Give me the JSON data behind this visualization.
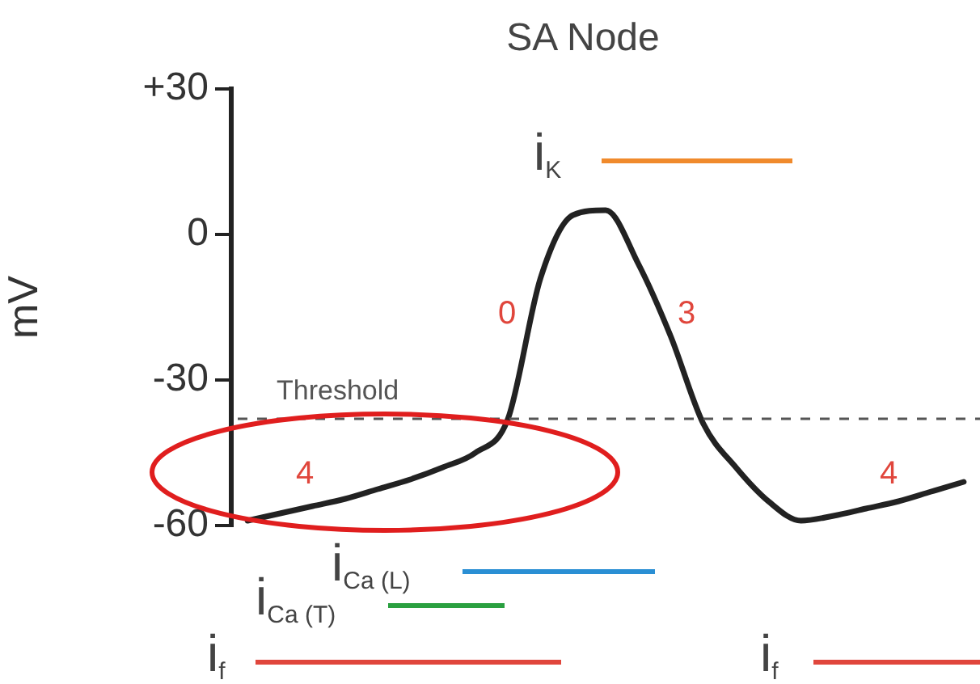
{
  "chart_data": {
    "type": "line",
    "title": "SA Node",
    "ylabel": "mV",
    "categories": [
      null,
      null,
      null,
      null,
      null,
      null,
      null,
      null,
      null,
      null,
      null,
      null,
      null,
      null,
      null,
      null,
      null,
      null,
      null,
      null,
      null,
      null,
      null
    ],
    "series": [
      {
        "color": "#222222",
        "values": [
          -59,
          -57.5,
          -56,
          -54.5,
          -52.5,
          -50.5,
          -48,
          -45,
          -38,
          -9,
          4,
          5,
          -6,
          -21,
          -39,
          -48,
          -55,
          -59,
          -58,
          -56.5,
          -55,
          -53,
          -51
        ]
      }
    ],
    "ylim": [
      -60,
      30
    ],
    "yticks": [
      {
        "value": 30,
        "label": "+30"
      },
      0,
      -30,
      -60
    ],
    "ref_lines": [
      {
        "axis": "y",
        "value": -38,
        "label": "Threshold",
        "color": "#555555",
        "line_style": "dashed"
      }
    ],
    "annotations": [
      "i$_{K}$",
      "i$_{Ca (L)}$",
      "i$_{Ca (T)}$",
      "i$_{f}$",
      "i$_{f}$",
      "0",
      "3",
      "4",
      "4"
    ],
    "grid": false,
    "legend": false,
    "marker": "none",
    "line_style": "solid",
    "tick_labels": "y"
  }
}
